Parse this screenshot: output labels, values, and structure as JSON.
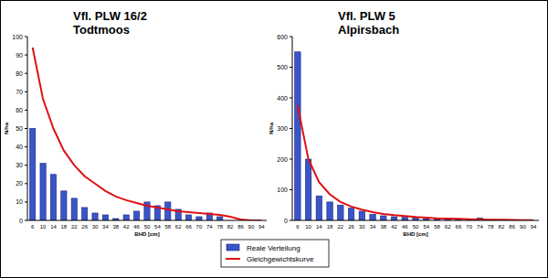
{
  "chart_data": [
    {
      "type": "bar",
      "title": "Vfl. PLW 16/2",
      "subtitle": "Todtmoos",
      "x_label": "BHD [cm]",
      "y_label": "N/ha",
      "categories": [
        "6",
        "10",
        "14",
        "18",
        "22",
        "26",
        "30",
        "34",
        "38",
        "42",
        "46",
        "50",
        "54",
        "58",
        "62",
        "66",
        "70",
        "74",
        "78",
        "82",
        "86",
        "90",
        "94"
      ],
      "series": [
        {
          "name": "Reale Verteilung",
          "type": "bar",
          "color": "#3a55c8",
          "values": [
            50,
            31,
            25,
            16,
            12,
            7,
            4,
            3,
            1,
            3,
            5,
            10,
            8,
            10,
            6,
            3,
            2,
            4,
            2,
            0,
            0,
            0,
            0
          ]
        },
        {
          "name": "Gleichgewichtskurve",
          "type": "line",
          "color": "#e01010",
          "values": [
            94,
            66,
            50,
            38,
            30,
            24,
            20,
            16,
            13,
            11,
            9.5,
            8,
            7,
            6,
            5,
            4.5,
            4,
            3.5,
            3,
            2,
            0.5,
            0,
            0
          ]
        }
      ],
      "ylim": [
        0,
        100
      ],
      "yticks": [
        0,
        10,
        20,
        30,
        40,
        50,
        60,
        70,
        80,
        90,
        100
      ],
      "legend": "bottom"
    },
    {
      "type": "bar",
      "title": "Vfl. PLW 5",
      "subtitle": "Alpirsbach",
      "x_label": "BHD [cm]",
      "y_label": "N/ha",
      "categories": [
        "6",
        "10",
        "14",
        "18",
        "22",
        "26",
        "30",
        "34",
        "38",
        "42",
        "46",
        "50",
        "54",
        "58",
        "62",
        "66",
        "70",
        "74",
        "78",
        "82",
        "86",
        "90",
        "94"
      ],
      "series": [
        {
          "type": "bar",
          "color": "#3a55c8",
          "values": [
            550,
            200,
            80,
            60,
            50,
            40,
            30,
            20,
            15,
            12,
            10,
            8,
            6,
            5,
            5,
            4,
            3,
            8,
            2,
            1,
            0,
            0,
            0
          ]
        },
        {
          "type": "line",
          "color": "#e01010",
          "values": [
            375,
            200,
            125,
            85,
            60,
            45,
            35,
            27,
            21,
            17,
            14,
            11,
            9,
            7,
            6,
            5,
            4,
            3,
            2.5,
            2,
            1.5,
            1,
            0.5
          ]
        }
      ],
      "ylim": [
        0,
        600
      ],
      "yticks": [
        0,
        100,
        200,
        300,
        400,
        500,
        600
      ]
    }
  ]
}
